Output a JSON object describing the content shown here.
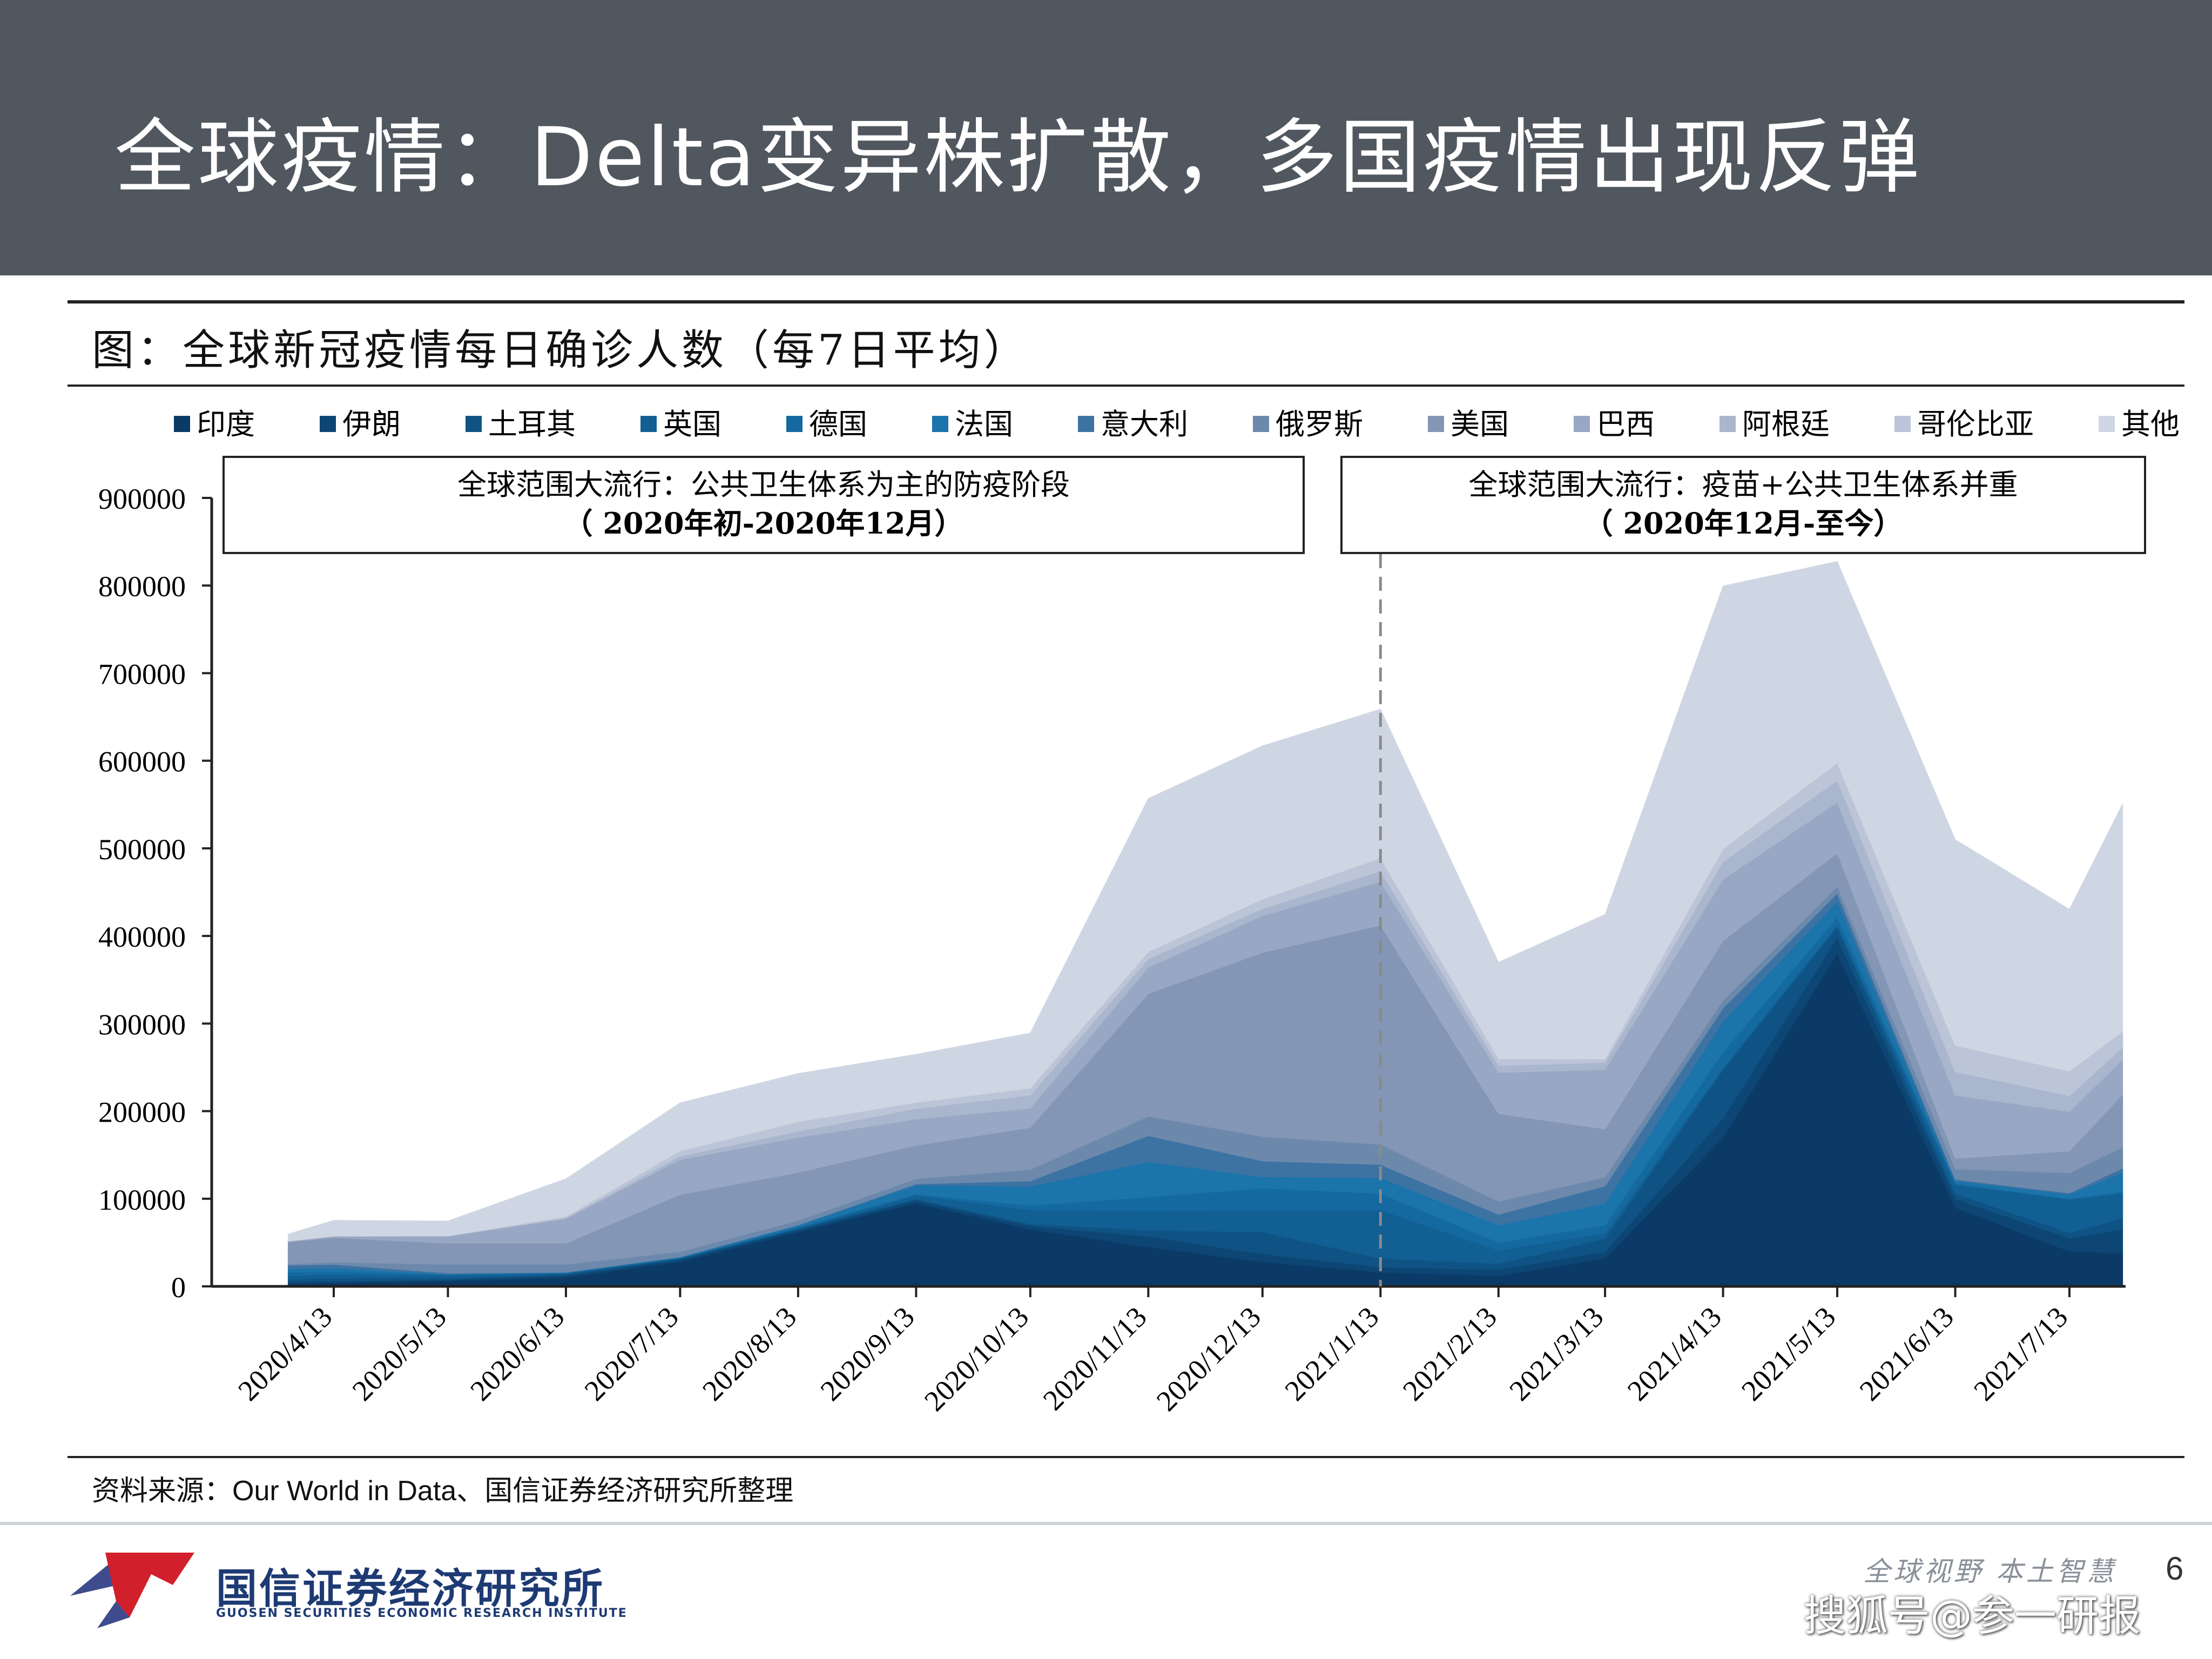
{
  "slide": {
    "title": "全球疫情：Delta变异株扩散，多国疫情出现反弹",
    "figure_caption": "图：全球新冠疫情每日确诊人数（每7日平均）",
    "source_label": "资料来源：",
    "source_text": "Our World in Data、国信证券经济研究所整理",
    "org_name": "国信证券经济研究所",
    "org_name_en": "GUOSEN SECURITIES ECONOMIC RESEARCH INSTITUTE",
    "slogan": "全球视野  本土智慧",
    "page_number": "6",
    "watermark": "搜狐号@参一研报"
  },
  "colors": {
    "title_bar": "#51575f",
    "series": [
      "#0b3a66",
      "#0d4674",
      "#0f5384",
      "#115f93",
      "#1469a0",
      "#1b74aa",
      "#3d73a3",
      "#6c89ac",
      "#8396b5",
      "#98a7c3",
      "#aab6cd",
      "#bcc5d7",
      "#cfd6e3"
    ]
  },
  "chart_data": {
    "type": "area",
    "stacked": true,
    "title": "",
    "ylim": [
      0,
      900000
    ],
    "yticks": [
      "0",
      "100000",
      "200000",
      "300000",
      "400000",
      "500000",
      "600000",
      "700000",
      "800000",
      "900000"
    ],
    "x_tick_labels": [
      "2020/4/13",
      "2020/5/13",
      "2020/6/13",
      "2020/7/13",
      "2020/8/13",
      "2020/9/13",
      "2020/10/13",
      "2020/11/13",
      "2020/12/13",
      "2021/1/13",
      "2021/2/13",
      "2021/3/13",
      "2021/4/13",
      "2021/5/13",
      "2021/6/13",
      "2021/7/13"
    ],
    "x": [
      "2020/4/1",
      "2020/4/13",
      "2020/5/13",
      "2020/6/13",
      "2020/7/13",
      "2020/8/13",
      "2020/9/13",
      "2020/10/13",
      "2020/11/13",
      "2020/12/13",
      "2021/1/13",
      "2021/2/13",
      "2021/3/13",
      "2021/4/13",
      "2021/5/13",
      "2021/6/13",
      "2021/7/13",
      "2021/7/27"
    ],
    "legend_position": "top",
    "annotations": [
      {
        "line1": "全球范围大流行：公共卫生体系为主的防疫阶段",
        "line2": "（ 2020年初-2020年12月）"
      },
      {
        "line1": "全球范围大流行：疫苗+公共卫生体系并重",
        "line2": "（ 2020年12月-至今）"
      }
    ],
    "divider_date": "2021/1/13",
    "series": [
      {
        "name": "印度",
        "values": [
          3000,
          4000,
          6000,
          10000,
          28000,
          62000,
          95000,
          65000,
          45000,
          28000,
          16000,
          12000,
          32000,
          170000,
          380000,
          90000,
          40000,
          38000
        ]
      },
      {
        "name": "伊朗",
        "values": [
          2000,
          2000,
          1500,
          2500,
          2500,
          2200,
          3000,
          4000,
          12000,
          9000,
          6000,
          7000,
          7500,
          22000,
          18000,
          10000,
          15000,
          27000
        ]
      },
      {
        "name": "土耳其",
        "values": [
          3000,
          3500,
          1800,
          1300,
          1000,
          1200,
          1700,
          2200,
          7000,
          25000,
          10000,
          7000,
          15000,
          55000,
          12000,
          6000,
          6000,
          13000
        ]
      },
      {
        "name": "英国",
        "values": [
          4000,
          4000,
          3000,
          1000,
          700,
          1000,
          4000,
          16000,
          22000,
          25000,
          55000,
          15000,
          6000,
          2500,
          2500,
          10000,
          38000,
          28000
        ]
      },
      {
        "name": "德国",
        "values": [
          4000,
          3500,
          1000,
          500,
          500,
          1200,
          1700,
          5000,
          16000,
          25000,
          19000,
          9000,
          9000,
          18000,
          9000,
          1500,
          1000,
          2000
        ]
      },
      {
        "name": "法国",
        "values": [
          4000,
          4000,
          800,
          500,
          700,
          2000,
          10000,
          22000,
          40000,
          13000,
          18000,
          20000,
          25000,
          35000,
          18000,
          3000,
          5000,
          22000
        ]
      },
      {
        "name": "意大利",
        "values": [
          4000,
          4000,
          1000,
          300,
          200,
          400,
          1500,
          6000,
          30000,
          18000,
          15000,
          12000,
          20000,
          15000,
          9000,
          1500,
          1500,
          5000
        ]
      },
      {
        "name": "俄罗斯",
        "values": [
          1500,
          2500,
          10000,
          9000,
          6000,
          5000,
          6000,
          13000,
          22000,
          28000,
          23000,
          15000,
          10000,
          9000,
          8000,
          12000,
          23000,
          24000
        ]
      },
      {
        "name": "美国",
        "values": [
          25000,
          28000,
          24000,
          24000,
          65000,
          55000,
          38000,
          48000,
          140000,
          210000,
          250000,
          100000,
          55000,
          68000,
          38000,
          12000,
          25000,
          60000
        ]
      },
      {
        "name": "巴西",
        "values": [
          1000,
          1500,
          8000,
          28000,
          40000,
          40000,
          30000,
          22000,
          30000,
          42000,
          50000,
          47000,
          68000,
          70000,
          58000,
          72000,
          45000,
          40000
        ]
      },
      {
        "name": "阿根廷",
        "values": [
          100,
          200,
          300,
          1200,
          4000,
          7000,
          12000,
          15000,
          10000,
          8000,
          12000,
          8000,
          8000,
          20000,
          25000,
          27000,
          18000,
          14000
        ]
      },
      {
        "name": "哥伦比亚",
        "values": [
          100,
          200,
          300,
          1500,
          6000,
          11000,
          7000,
          8000,
          8000,
          11000,
          15000,
          8000,
          4000,
          15000,
          20000,
          30000,
          28000,
          18000
        ]
      },
      {
        "name": "其他",
        "values": [
          8000,
          18000,
          17000,
          43000,
          55000,
          55000,
          55000,
          63000,
          175000,
          175000,
          170000,
          110000,
          165000,
          300000,
          230000,
          235000,
          185000,
          260000
        ]
      }
    ]
  }
}
